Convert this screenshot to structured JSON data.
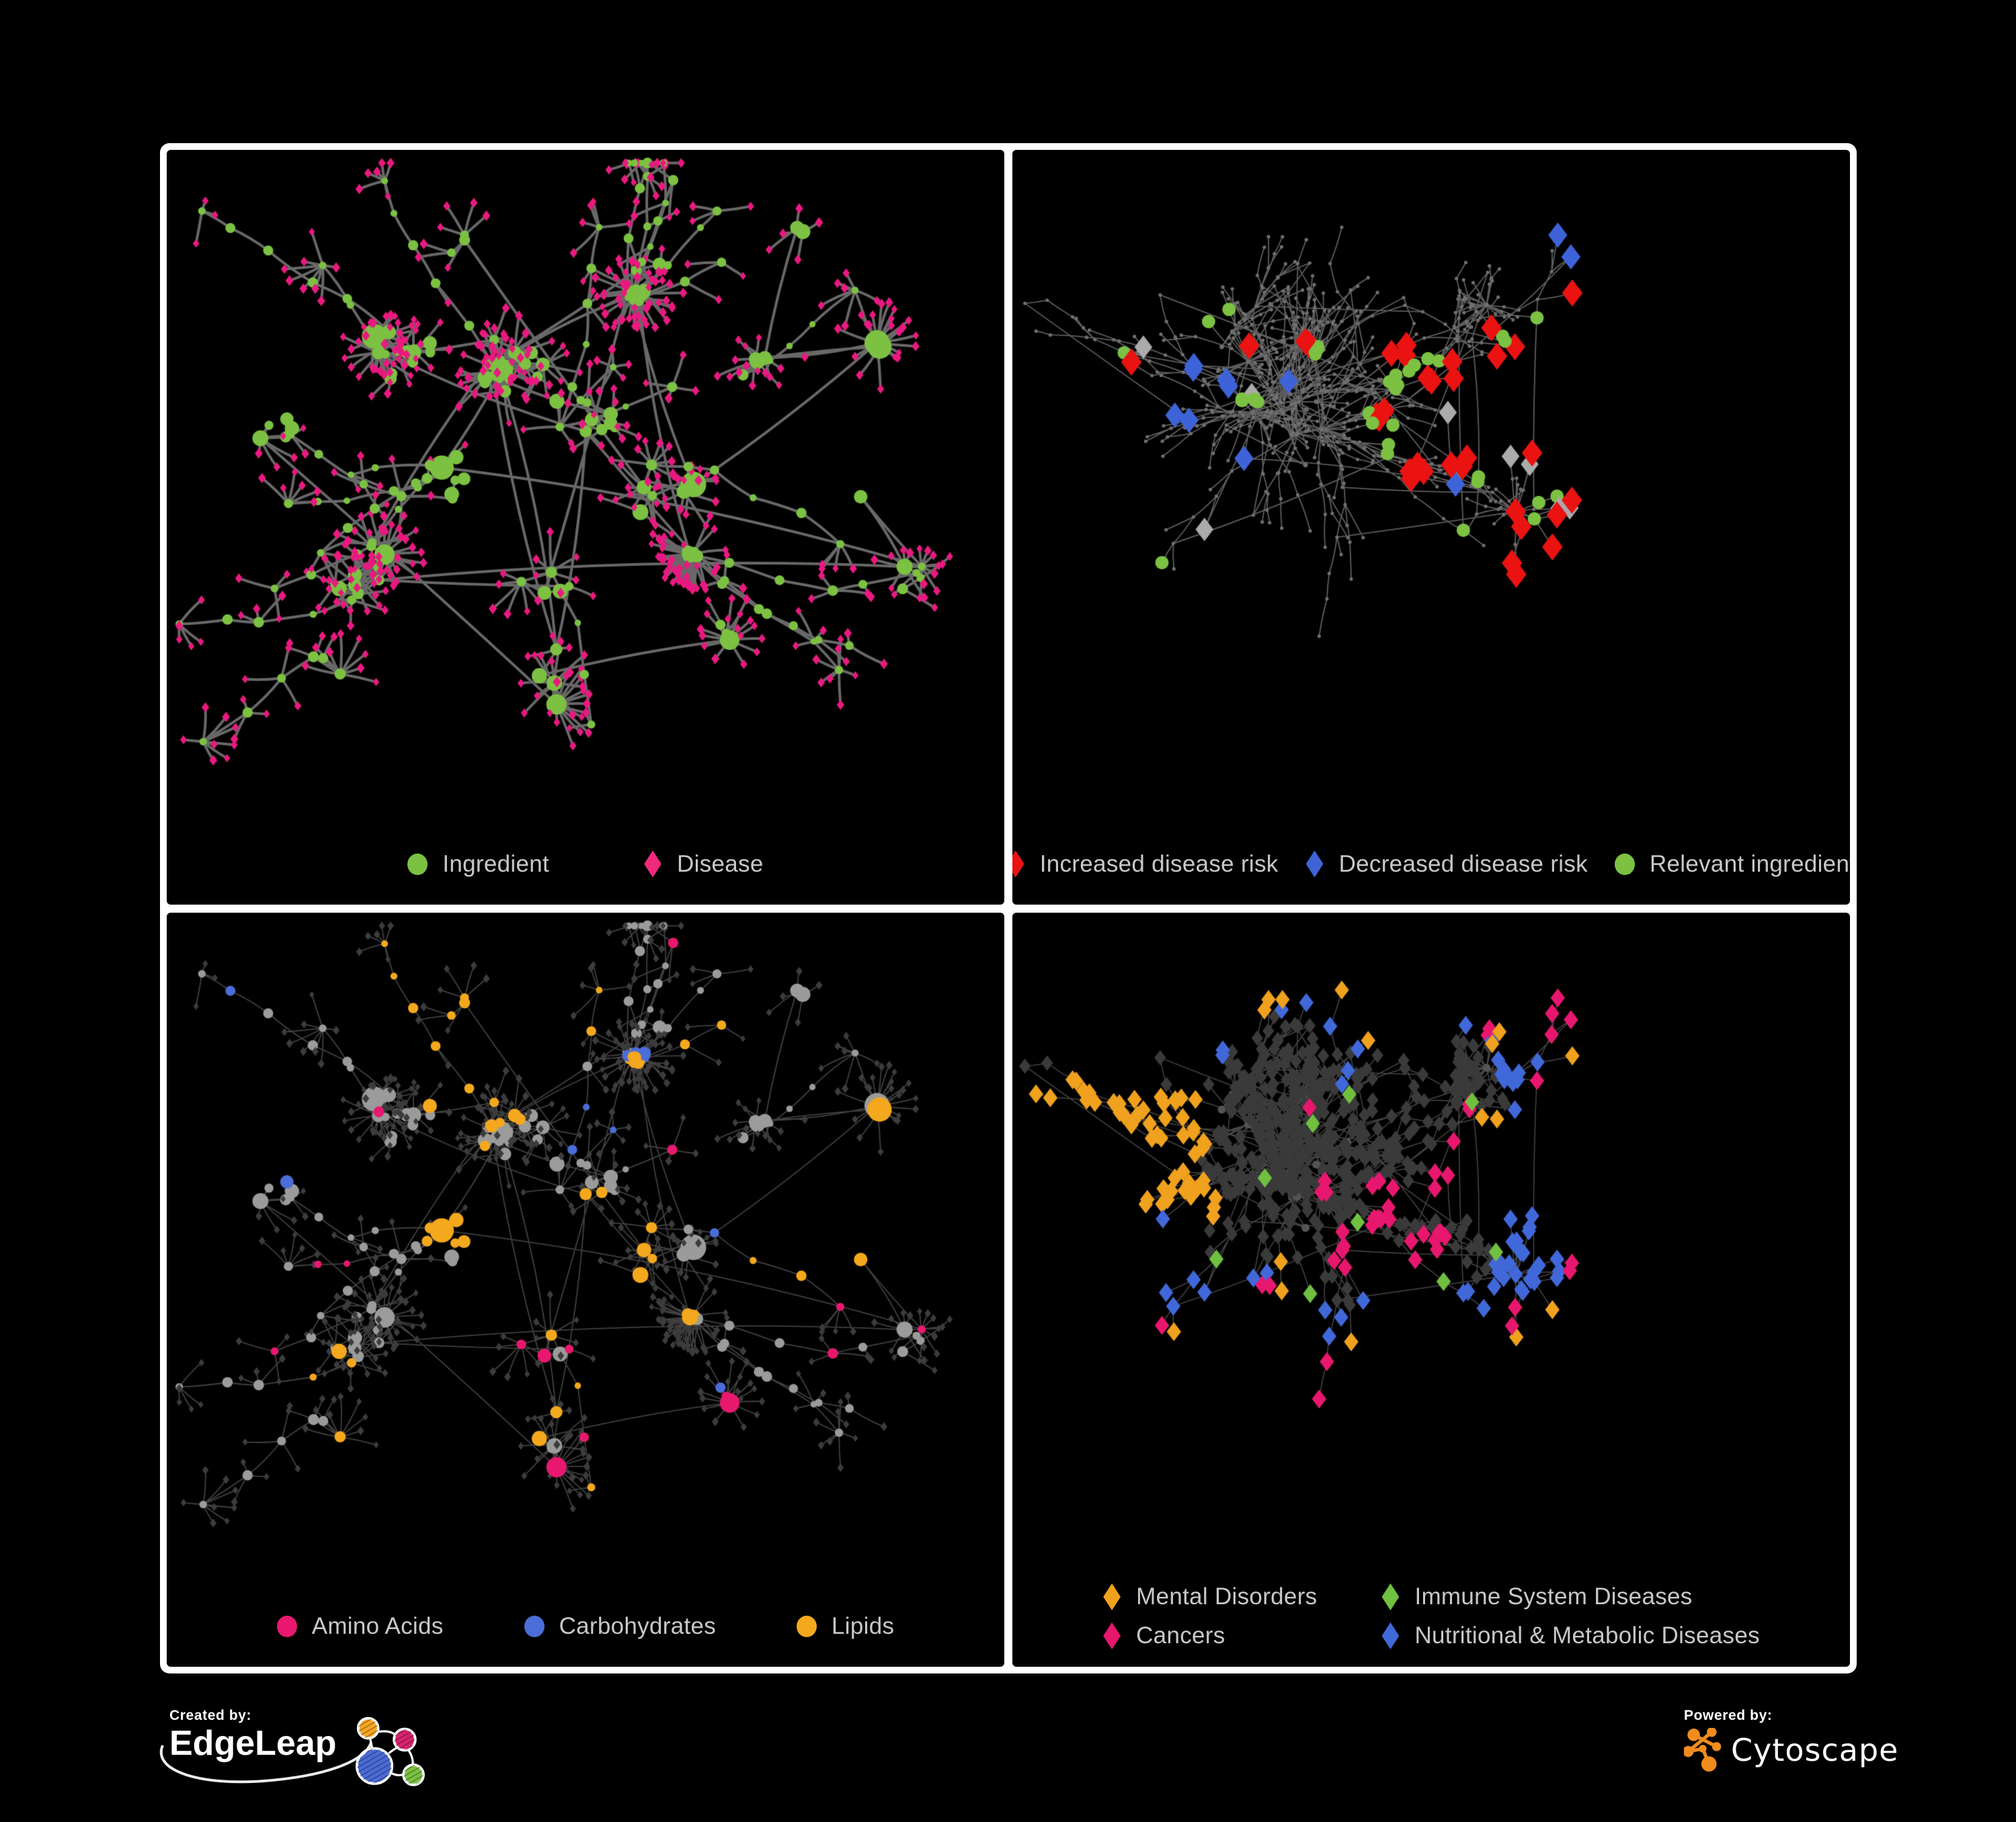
{
  "figure": {
    "background": "#000000",
    "frame_color": "#FFFFFF",
    "legend_text_color": "#C8C8C8"
  },
  "panels": [
    {
      "name": "ingredient-disease-network",
      "layout": "A",
      "edge": {
        "color": "#6E6E6E",
        "width": 4,
        "opacity": 0.95
      },
      "base": {
        "hub": {
          "shape": "circle",
          "color": "#7CC142"
        },
        "leaf": {
          "shape": "diamond",
          "color": "#E91980"
        }
      },
      "highlights": [],
      "legend": [
        {
          "shape": "circle",
          "color": "#7CC142",
          "label": "Ingredient"
        },
        {
          "shape": "diamond",
          "color": "#EE2A7B",
          "label": "Disease"
        }
      ]
    },
    {
      "name": "disease-risk-network",
      "layout": "B",
      "edge": {
        "color": "#6D6D6D",
        "width": 1.8,
        "opacity": 0.85
      },
      "base": {
        "hub": {
          "shape": "circle",
          "color": "#6F6F6F",
          "size": 3.4
        },
        "leaf": {
          "shape": "circle",
          "color": "#6F6F6F",
          "size": 2.6
        }
      },
      "highlights": [
        {
          "shape": "diamond",
          "color": "#EB1212",
          "size": 15,
          "spots": [
            [
              0.46,
              0.3,
              3
            ],
            [
              0.52,
              0.36,
              4
            ],
            [
              0.44,
              0.4,
              3
            ],
            [
              0.55,
              0.44,
              3
            ],
            [
              0.48,
              0.5,
              4
            ],
            [
              0.6,
              0.38,
              2
            ],
            [
              0.65,
              0.44,
              1
            ],
            [
              0.35,
              0.3,
              2
            ],
            [
              0.28,
              0.3,
              1
            ],
            [
              0.12,
              0.35,
              1
            ],
            [
              0.57,
              0.26,
              1
            ],
            [
              0.85,
              0.28,
              1
            ],
            [
              0.6,
              0.56,
              2
            ],
            [
              0.67,
              0.58,
              1
            ],
            [
              0.75,
              0.72,
              2
            ],
            [
              0.7,
              0.78,
              1
            ],
            [
              0.95,
              0.4,
              1
            ]
          ]
        },
        {
          "shape": "diamond",
          "color": "#3E63D8",
          "size": 14,
          "spots": [
            [
              0.21,
              0.33,
              2
            ],
            [
              0.25,
              0.36,
              2
            ],
            [
              0.2,
              0.41,
              2
            ],
            [
              0.27,
              0.46,
              1
            ],
            [
              0.87,
              0.17,
              2
            ],
            [
              0.33,
              0.35,
              1
            ],
            [
              0.53,
              0.5,
              1
            ]
          ]
        },
        {
          "shape": "diamond",
          "color": "#ABABAB",
          "size": 13,
          "spots": [
            [
              0.16,
              0.29,
              1
            ],
            [
              0.29,
              0.37,
              1
            ],
            [
              0.52,
              0.38,
              1
            ],
            [
              0.57,
              0.42,
              1
            ],
            [
              0.63,
              0.45,
              1
            ],
            [
              0.26,
              0.6,
              1
            ],
            [
              0.74,
              0.52,
              1
            ],
            [
              0.83,
              0.73,
              1
            ]
          ]
        },
        {
          "shape": "circle",
          "color": "#7CC142",
          "size": 10,
          "spots": [
            [
              0.36,
              0.3,
              6
            ],
            [
              0.48,
              0.33,
              8
            ],
            [
              0.44,
              0.43,
              6
            ],
            [
              0.28,
              0.38,
              4
            ],
            [
              0.55,
              0.47,
              3
            ],
            [
              0.25,
              0.25,
              2
            ],
            [
              0.6,
              0.3,
              2
            ],
            [
              0.13,
              0.33,
              1
            ],
            [
              0.85,
              0.33,
              1
            ],
            [
              0.73,
              0.62,
              3
            ],
            [
              0.52,
              0.6,
              1
            ],
            [
              0.12,
              0.6,
              1
            ]
          ]
        }
      ],
      "legend": [
        {
          "shape": "diamond",
          "color": "#EB1212",
          "label": "Increased disease risk"
        },
        {
          "shape": "diamond",
          "color": "#3E63D8",
          "label": "Decreased disease risk"
        },
        {
          "shape": "circle",
          "color": "#7CC142",
          "label": "Relevant ingredient"
        }
      ]
    },
    {
      "name": "nutrient-class-network",
      "layout": "A",
      "edge": {
        "color": "#9C9C9C",
        "width": 1.8,
        "opacity": 0.42
      },
      "base": {
        "hub": {
          "shape": "circle",
          "color": "#9B9B9B"
        },
        "leaf": {
          "shape": "diamond",
          "color": "#3C3C3C",
          "scale": 0.85
        }
      },
      "highlights": [
        {
          "shape": "circle",
          "color": "#F4A81D",
          "apply": "hub",
          "spots": [
            [
              0.38,
              0.2,
              14
            ],
            [
              0.56,
              0.24,
              12
            ],
            [
              0.33,
              0.42,
              9
            ],
            [
              0.52,
              0.55,
              7
            ],
            [
              0.62,
              0.6,
              5
            ],
            [
              0.2,
              0.7,
              3
            ],
            [
              0.45,
              0.75,
              3
            ],
            [
              0.75,
              0.45,
              3
            ],
            [
              0.68,
              0.18,
              2
            ],
            [
              0.88,
              0.4,
              1
            ],
            [
              0.3,
              0.88,
              1
            ],
            [
              0.55,
              0.88,
              1
            ],
            [
              0.25,
              0.12,
              2
            ],
            [
              0.48,
              0.08,
              2
            ]
          ]
        },
        {
          "shape": "circle",
          "color": "#4A6DD8",
          "apply": "hub",
          "spots": [
            [
              0.57,
              0.22,
              7
            ],
            [
              0.5,
              0.3,
              3
            ],
            [
              0.03,
              0.2,
              1
            ],
            [
              0.75,
              0.48,
              1
            ],
            [
              0.6,
              0.75,
              1
            ],
            [
              0.13,
              0.3,
              1
            ]
          ]
        },
        {
          "shape": "circle",
          "color": "#E8186F",
          "apply": "hub",
          "spots": [
            [
              0.2,
              0.55,
              2
            ],
            [
              0.1,
              0.62,
              1
            ],
            [
              0.42,
              0.7,
              2
            ],
            [
              0.55,
              0.72,
              2
            ],
            [
              0.65,
              0.78,
              2
            ],
            [
              0.78,
              0.6,
              2
            ],
            [
              0.9,
              0.55,
              1
            ],
            [
              0.45,
              0.92,
              1
            ],
            [
              0.25,
              0.3,
              1
            ],
            [
              0.6,
              0.4,
              1
            ],
            [
              0.64,
              0.05,
              1
            ]
          ]
        }
      ],
      "legend": [
        {
          "shape": "circle",
          "color": "#E8186F",
          "label": "Amino Acids"
        },
        {
          "shape": "circle",
          "color": "#4A6DD8",
          "label": "Carbohydrates"
        },
        {
          "shape": "circle",
          "color": "#F4A81D",
          "label": "Lipids"
        }
      ]
    },
    {
      "name": "disease-class-network",
      "layout": "B",
      "edge": {
        "color": "#8B8B8B",
        "width": 1.5,
        "opacity": 0.5
      },
      "base": {
        "hub": {
          "shape": "circle",
          "color": "#545454",
          "size": 6
        },
        "leaf": {
          "shape": "diamond",
          "color": "#3A3A3A",
          "size": 8.5
        }
      },
      "highlights": [
        {
          "shape": "diamond",
          "color": "#F0A11E",
          "size": 10.5,
          "spots": [
            [
              0.14,
              0.38,
              24
            ],
            [
              0.2,
              0.32,
              13
            ],
            [
              0.1,
              0.3,
              9
            ],
            [
              0.22,
              0.44,
              8
            ],
            [
              0.3,
              0.1,
              3
            ],
            [
              0.45,
              0.05,
              2
            ],
            [
              0.6,
              0.2,
              2
            ],
            [
              0.33,
              0.55,
              2
            ],
            [
              0.42,
              0.68,
              1
            ],
            [
              0.55,
              0.82,
              1
            ],
            [
              0.68,
              0.62,
              1
            ],
            [
              0.75,
              0.2,
              1
            ],
            [
              0.16,
              0.9,
              1
            ],
            [
              0.58,
              0.35,
              2
            ]
          ]
        },
        {
          "shape": "diamond",
          "color": "#E8176E",
          "size": 10.5,
          "spots": [
            [
              0.45,
              0.44,
              9
            ],
            [
              0.5,
              0.52,
              8
            ],
            [
              0.42,
              0.52,
              6
            ],
            [
              0.55,
              0.4,
              4
            ],
            [
              0.38,
              0.42,
              3
            ],
            [
              0.6,
              0.15,
              2
            ],
            [
              0.92,
              0.28,
              4
            ],
            [
              0.88,
              0.33,
              2
            ],
            [
              0.3,
              0.63,
              2
            ],
            [
              0.62,
              0.7,
              2
            ],
            [
              0.15,
              0.62,
              1
            ],
            [
              0.25,
              0.78,
              2
            ],
            [
              0.85,
              0.85,
              1
            ],
            [
              0.55,
              0.3,
              2
            ],
            [
              0.35,
              0.3,
              1
            ]
          ]
        },
        {
          "shape": "diamond",
          "color": "#4168D9",
          "size": 10.5,
          "spots": [
            [
              0.63,
              0.52,
              11
            ],
            [
              0.68,
              0.58,
              8
            ],
            [
              0.78,
              0.3,
              6
            ],
            [
              0.85,
              0.18,
              4
            ],
            [
              0.88,
              0.38,
              4
            ],
            [
              0.45,
              0.1,
              2
            ],
            [
              0.55,
              0.05,
              2
            ],
            [
              0.35,
              0.08,
              2
            ],
            [
              0.28,
              0.6,
              3
            ],
            [
              0.33,
              0.7,
              2
            ],
            [
              0.48,
              0.78,
              2
            ],
            [
              0.2,
              0.8,
              2
            ],
            [
              0.6,
              0.88,
              1
            ],
            [
              0.75,
              0.75,
              2
            ],
            [
              0.95,
              0.55,
              2
            ],
            [
              0.25,
              0.2,
              2
            ],
            [
              0.4,
              0.25,
              2
            ],
            [
              0.05,
              0.7,
              1
            ],
            [
              0.52,
              0.63,
              2
            ],
            [
              0.15,
              0.5,
              1
            ]
          ]
        },
        {
          "shape": "diamond",
          "color": "#70C040",
          "size": 10.5,
          "spots": [
            [
              0.4,
              0.28,
              1
            ],
            [
              0.36,
              0.33,
              1
            ],
            [
              0.42,
              0.47,
              1
            ],
            [
              0.55,
              0.28,
              1
            ],
            [
              0.3,
              0.4,
              1
            ],
            [
              0.13,
              0.87,
              1
            ],
            [
              0.48,
              0.6,
              1
            ],
            [
              0.22,
              0.88,
              1
            ],
            [
              0.78,
              0.5,
              1
            ]
          ]
        }
      ],
      "legend": [
        {
          "shape": "diamond",
          "color": "#F0A11E",
          "label": "Mental Disorders"
        },
        {
          "shape": "diamond",
          "color": "#70C040",
          "label": "Immune System Diseases"
        },
        {
          "shape": "diamond",
          "color": "#E8176E",
          "label": "Cancers"
        },
        {
          "shape": "diamond",
          "color": "#4168D9",
          "label": "Nutritional & Metabolic Diseases"
        }
      ]
    }
  ],
  "generators": {
    "A": {
      "seed": 9,
      "hubs": 112,
      "leafMax": 9,
      "chains": 26,
      "extraEdges": 24,
      "clusters": [
        [
          0.4,
          0.33,
          3,
          0.08
        ],
        [
          0.28,
          0.3,
          2,
          0.07
        ],
        [
          0.5,
          0.42,
          3,
          0.07
        ],
        [
          0.33,
          0.5,
          2,
          0.06
        ],
        [
          0.23,
          0.64,
          1.5,
          0.06
        ],
        [
          0.45,
          0.64,
          1.5,
          0.06
        ],
        [
          0.6,
          0.5,
          1.5,
          0.06
        ],
        [
          0.7,
          0.3,
          1.2,
          0.06
        ],
        [
          0.56,
          0.16,
          1,
          0.05
        ],
        [
          0.8,
          0.55,
          1,
          0.05
        ],
        [
          0.67,
          0.73,
          1,
          0.05
        ],
        [
          0.35,
          0.15,
          1,
          0.05
        ],
        [
          0.15,
          0.42,
          1,
          0.05
        ],
        [
          0.85,
          0.3,
          0.8,
          0.04
        ],
        [
          0.47,
          0.8,
          0.8,
          0.05
        ],
        [
          0.75,
          0.14,
          0.7,
          0.04
        ],
        [
          0.18,
          0.78,
          0.7,
          0.04
        ],
        [
          0.88,
          0.65,
          0.6,
          0.04
        ]
      ],
      "blobs": [
        [
          0.56,
          0.22,
          20,
          0.022
        ],
        [
          0.62,
          0.62,
          7,
          0.018
        ]
      ],
      "fans": [
        [
          0.62,
          0.63,
          24
        ],
        [
          0.31,
          0.64,
          16
        ],
        [
          0.48,
          0.86,
          14
        ],
        [
          0.17,
          0.26,
          10
        ],
        [
          0.84,
          0.3,
          12
        ],
        [
          0.68,
          0.84,
          10
        ]
      ]
    },
    "B": {
      "seed": 41,
      "nodes": 720,
      "roots": [
        [
          0.4,
          0.35
        ],
        [
          0.52,
          0.4
        ],
        [
          0.35,
          0.48
        ],
        [
          0.6,
          0.3
        ],
        [
          0.25,
          0.3
        ]
      ],
      "fanProb": 0.013,
      "crossEdges": 55,
      "frontier": 90,
      "frontierProb": 0.68
    }
  },
  "footer": {
    "created_by_label": "Created by:",
    "created_by_name": "EdgeLeap",
    "powered_by_label": "Powered by:",
    "powered_by_name": "Cytoscape",
    "edgeleap_orange": "#F5A623",
    "edgeleap_pink": "#D6246E",
    "edgeleap_blue": "#4A6BD5",
    "edgeleap_green": "#7CC142",
    "cytoscape_orange": "#F08C1E"
  }
}
